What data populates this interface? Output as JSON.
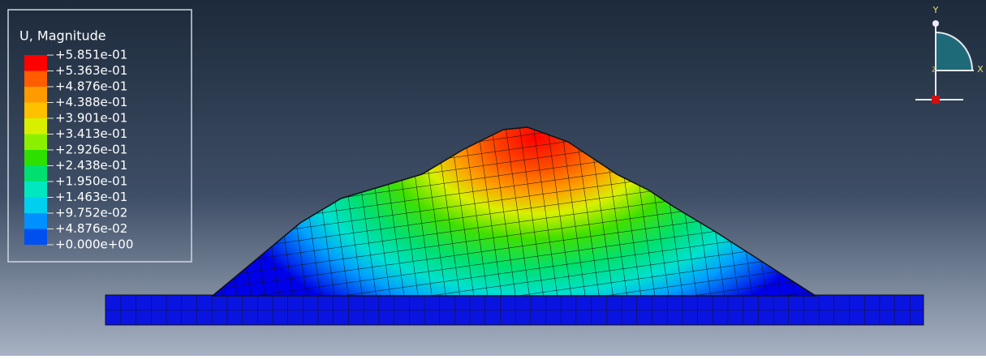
{
  "legend": {
    "title": "U, Magnitude",
    "labels": [
      "+5.851e-01",
      "+5.363e-01",
      "+4.876e-01",
      "+4.388e-01",
      "+3.901e-01",
      "+3.413e-01",
      "+2.926e-01",
      "+2.438e-01",
      "+1.950e-01",
      "+1.463e-01",
      "+9.752e-02",
      "+4.876e-02",
      "+0.000e+00"
    ],
    "colors": [
      "#ff0000",
      "#ff5d00",
      "#ff9a00",
      "#ffc000",
      "#d8f000",
      "#8bf000",
      "#2ee000",
      "#00e070",
      "#00e8c0",
      "#00d0f0",
      "#0090ff",
      "#0050f0",
      "#0000e8"
    ]
  },
  "triad": {
    "y": "Y",
    "x": "X",
    "z": "Z"
  }
}
